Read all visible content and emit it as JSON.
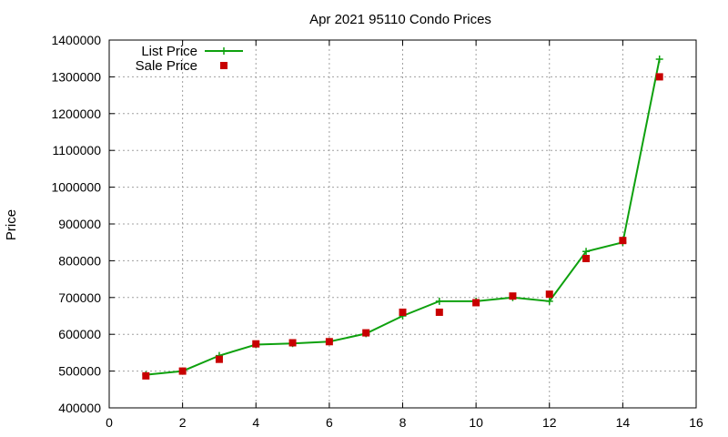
{
  "chart_data": {
    "type": "line",
    "title": "Apr 2021 95110 Condo Prices",
    "xlabel": "",
    "ylabel": "Price",
    "xlim": [
      0,
      16
    ],
    "ylim": [
      400000,
      1400000
    ],
    "x_ticks": [
      0,
      2,
      4,
      6,
      8,
      10,
      12,
      14,
      16
    ],
    "y_ticks": [
      400000,
      500000,
      600000,
      700000,
      800000,
      900000,
      1000000,
      1100000,
      1200000,
      1300000,
      1400000
    ],
    "grid": true,
    "legend_position": "top-left",
    "series": [
      {
        "name": "List Price",
        "style": "line with plus markers",
        "color": "#0ea10e",
        "x": [
          1,
          2,
          3,
          4,
          5,
          6,
          7,
          8,
          9,
          10,
          11,
          12,
          13,
          14,
          15
        ],
        "y": [
          490000,
          500000,
          542000,
          572000,
          575000,
          580000,
          602000,
          650000,
          690000,
          690000,
          700000,
          690000,
          825000,
          850000,
          1348000
        ]
      },
      {
        "name": "Sale Price",
        "style": "square markers",
        "color": "#c80000",
        "x": [
          1,
          2,
          3,
          4,
          5,
          6,
          7,
          8,
          9,
          10,
          11,
          12,
          13,
          14,
          15
        ],
        "y": [
          487000,
          500000,
          532000,
          574000,
          577000,
          580000,
          604000,
          660000,
          660000,
          686000,
          704000,
          709000,
          806000,
          855000,
          1300000
        ]
      }
    ]
  }
}
